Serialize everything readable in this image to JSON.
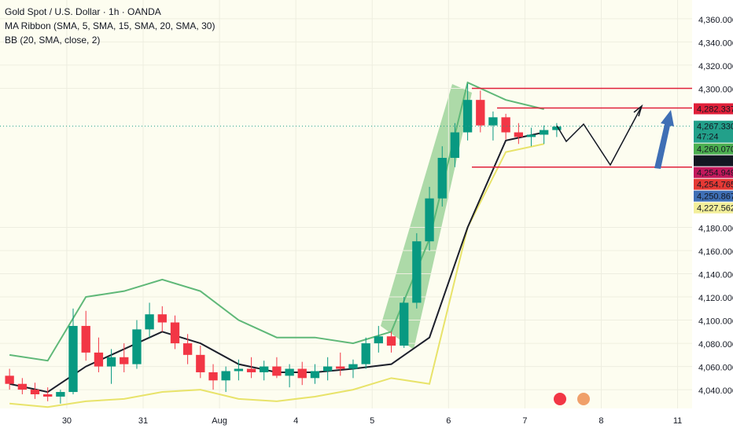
{
  "chart_data": {
    "type": "candlestick",
    "title": "Gold Spot / U.S. Dollar · 1h · OANDA",
    "indicators": [
      "MA Ribbon (SMA, 5, SMA, 15, SMA, 20, SMA, 30)",
      "BB (20, SMA, close, 2)"
    ],
    "up_color": "#089981",
    "down_color": "#f23645",
    "xlim": [
      -0.875,
      8.19
    ],
    "ylim": [
      4023.8,
      4376.2
    ],
    "xticks": [
      {
        "value": 0,
        "label": "30"
      },
      {
        "value": 1,
        "label": "31"
      },
      {
        "value": 2,
        "label": "Aug"
      },
      {
        "value": 3,
        "label": "4"
      },
      {
        "value": 4,
        "label": "5"
      },
      {
        "value": 5,
        "label": "6"
      },
      {
        "value": 6,
        "label": "7"
      },
      {
        "value": 7,
        "label": "8"
      },
      {
        "value": 8,
        "label": "11"
      }
    ],
    "yticks": [
      {
        "value": 4040,
        "label": "4,040.000"
      },
      {
        "value": 4060,
        "label": "4,060.000"
      },
      {
        "value": 4080,
        "label": "4,080.000"
      },
      {
        "value": 4100,
        "label": "4,100.000"
      },
      {
        "value": 4120,
        "label": "4,120.000"
      },
      {
        "value": 4140,
        "label": "4,140.000"
      },
      {
        "value": 4160,
        "label": "4,160.000"
      },
      {
        "value": 4180,
        "label": "4,180.000"
      },
      {
        "value": 4300,
        "label": "4,300.000"
      },
      {
        "value": 4320,
        "label": "4,320.000"
      },
      {
        "value": 4340,
        "label": "4,340.000"
      },
      {
        "value": 4360,
        "label": "4,360.000"
      }
    ],
    "x": [
      -0.75,
      -0.583,
      -0.417,
      -0.25,
      -0.083,
      0.083,
      0.25,
      0.417,
      0.583,
      0.75,
      0.917,
      1.083,
      1.25,
      1.417,
      1.583,
      1.75,
      1.917,
      2.083,
      2.25,
      2.417,
      2.583,
      2.75,
      2.917,
      3.083,
      3.25,
      3.417,
      3.583,
      3.75,
      3.917,
      4.083,
      4.25,
      4.417,
      4.583,
      4.75,
      4.917,
      5.083,
      5.25,
      5.417,
      5.583,
      5.75,
      5.917,
      6.083,
      6.25,
      6.417
    ],
    "candles": [
      [
        4052,
        4058,
        4040,
        4045
      ],
      [
        4045,
        4050,
        4036,
        4040
      ],
      [
        4040,
        4046,
        4032,
        4036
      ],
      [
        4036,
        4042,
        4030,
        4034
      ],
      [
        4034,
        4040,
        4028,
        4038
      ],
      [
        4038,
        4110,
        4036,
        4095
      ],
      [
        4095,
        4108,
        4065,
        4072
      ],
      [
        4072,
        4085,
        4055,
        4060
      ],
      [
        4060,
        4075,
        4045,
        4068
      ],
      [
        4068,
        4080,
        4055,
        4062
      ],
      [
        4062,
        4100,
        4058,
        4092
      ],
      [
        4092,
        4115,
        4085,
        4105
      ],
      [
        4105,
        4112,
        4090,
        4098
      ],
      [
        4098,
        4104,
        4075,
        4080
      ],
      [
        4080,
        4088,
        4062,
        4070
      ],
      [
        4070,
        4078,
        4050,
        4055
      ],
      [
        4055,
        4062,
        4040,
        4048
      ],
      [
        4048,
        4060,
        4038,
        4056
      ],
      [
        4056,
        4066,
        4048,
        4058
      ],
      [
        4058,
        4068,
        4050,
        4055
      ],
      [
        4055,
        4065,
        4048,
        4060
      ],
      [
        4060,
        4068,
        4050,
        4052
      ],
      [
        4052,
        4062,
        4042,
        4058
      ],
      [
        4058,
        4064,
        4044,
        4050
      ],
      [
        4050,
        4062,
        4045,
        4056
      ],
      [
        4056,
        4068,
        4048,
        4060
      ],
      [
        4060,
        4072,
        4052,
        4058
      ],
      [
        4058,
        4066,
        4050,
        4062
      ],
      [
        4062,
        4085,
        4058,
        4080
      ],
      [
        4080,
        4095,
        4072,
        4086
      ],
      [
        4086,
        4090,
        4072,
        4078
      ],
      [
        4078,
        4120,
        4076,
        4115
      ],
      [
        4115,
        4175,
        4110,
        4168
      ],
      [
        4168,
        4215,
        4160,
        4205
      ],
      [
        4205,
        4250,
        4198,
        4240
      ],
      [
        4240,
        4270,
        4232,
        4262
      ],
      [
        4262,
        4304,
        4255,
        4290
      ],
      [
        4290,
        4298,
        4262,
        4268
      ],
      [
        4268,
        4280,
        4255,
        4275
      ],
      [
        4275,
        4278,
        4256,
        4262
      ],
      [
        4262,
        4270,
        4252,
        4258
      ],
      [
        4258,
        4266,
        4250,
        4260
      ],
      [
        4260,
        4268,
        4252,
        4264
      ],
      [
        4264,
        4270,
        4258,
        4267
      ]
    ],
    "overlay_x": [
      -0.75,
      -0.25,
      0.25,
      0.75,
      1.25,
      1.75,
      2.25,
      2.75,
      3.25,
      3.75,
      4.25,
      4.75,
      5.25,
      5.75,
      6.25
    ],
    "overlays": [
      {
        "color": "#5fb878",
        "values": [
          4070,
          4065,
          4120,
          4125,
          4135,
          4125,
          4100,
          4085,
          4085,
          4080,
          4090,
          4170,
          4305,
          4290,
          4282
        ]
      },
      {
        "color": "#e8e36a",
        "values": [
          4028,
          4025,
          4030,
          4032,
          4038,
          4040,
          4032,
          4030,
          4034,
          4040,
          4050,
          4045,
          4180,
          4245,
          4252
        ]
      },
      {
        "color": "#1c1f2b",
        "values": [
          4045,
          4038,
          4060,
          4075,
          4090,
          4080,
          4062,
          4055,
          4055,
          4058,
          4062,
          4085,
          4180,
          4255,
          4262
        ]
      }
    ],
    "levels": [
      4300,
      4283,
      4232
    ],
    "level_color": "#e0203a",
    "countdown": "47:24",
    "price_labels": [
      {
        "value": 4282.337,
        "label": "4,282.337",
        "color": "#e0203a"
      },
      {
        "value": 4267.33,
        "label": "4,267.330",
        "color": "#22a08a"
      },
      {
        "value": 4260.07,
        "label": "4,260.070",
        "color": "#4caf50"
      },
      {
        "value": 4254.949,
        "label": "4,254.949",
        "color": "#131722"
      },
      {
        "value": 4254.949,
        "label": "4,254.949",
        "color": "#c2185b"
      },
      {
        "value": 4254.765,
        "label": "4,254.765",
        "color": "#e53935"
      },
      {
        "value": 4250.867,
        "label": "4,250.867",
        "color": "#3f6fb5"
      },
      {
        "value": 4227.562,
        "label": "4,227.562",
        "color": "#f3ef9a"
      }
    ]
  }
}
